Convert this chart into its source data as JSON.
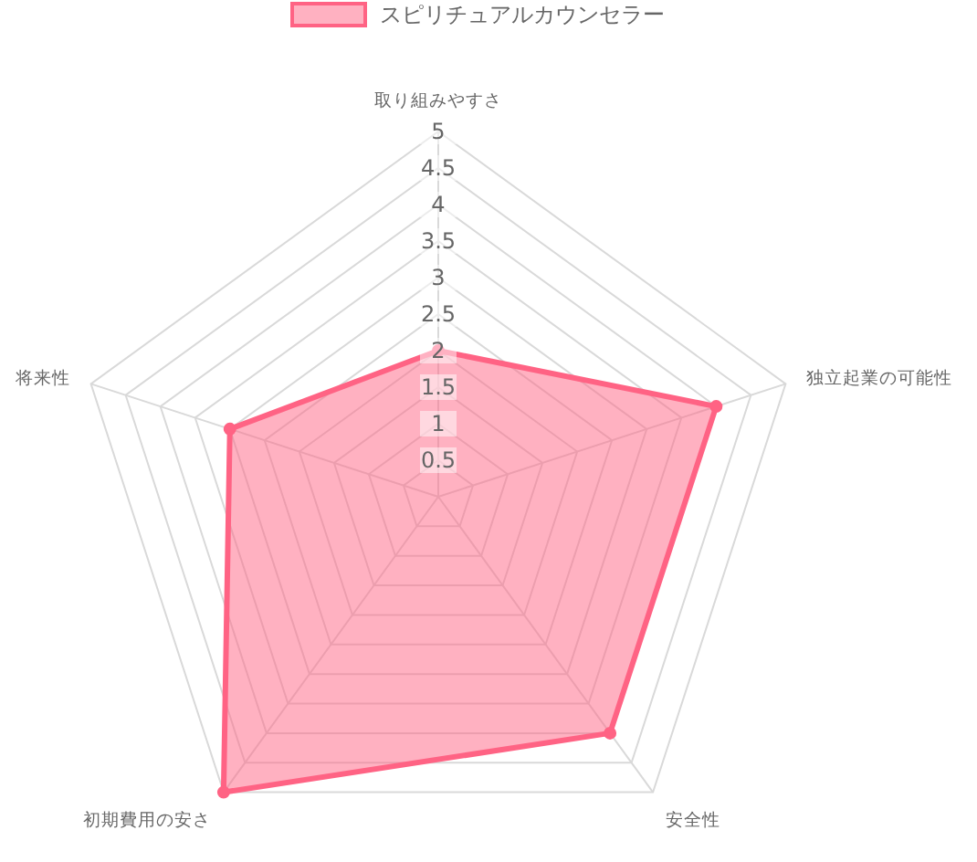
{
  "chart_data": {
    "type": "radar",
    "categories": [
      "取り組みやすさ",
      "独立起業の可能性",
      "安全性",
      "初期費用の安さ",
      "将来性"
    ],
    "series": [
      {
        "name": "スピリチュアルカウンセラー",
        "color": "#ff6384",
        "values": [
          2,
          4,
          4,
          5,
          3
        ]
      }
    ],
    "ylim": [
      0,
      5
    ],
    "yticks": [
      0.5,
      1,
      1.5,
      2,
      2.5,
      3,
      3.5,
      4,
      4.5,
      5
    ],
    "grid": true,
    "legend": "top",
    "marker": "circle"
  }
}
